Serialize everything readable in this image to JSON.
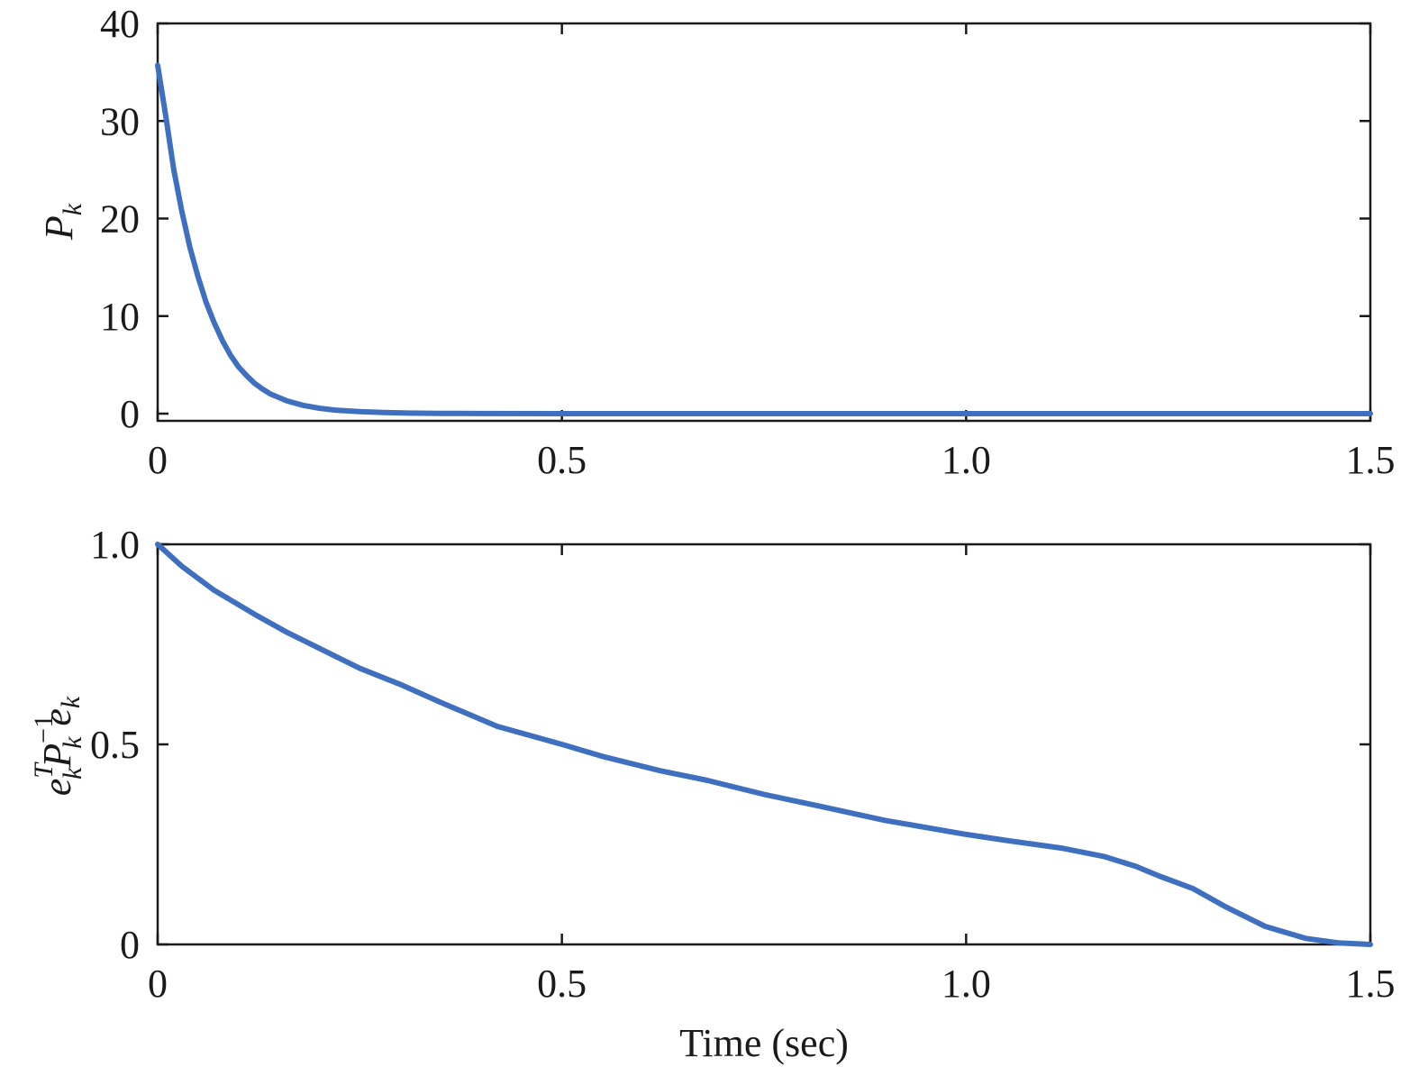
{
  "chart_data": [
    {
      "type": "line",
      "title": "",
      "xlabel": "",
      "ylabel": "P_k",
      "ylabel_parts": {
        "base": "P",
        "sub": "k"
      },
      "xlim": [
        0,
        1.5
      ],
      "ylim": [
        -1,
        40
      ],
      "grid": false,
      "legend": "none",
      "x_ticks": [
        {
          "value": 0,
          "label": "0"
        },
        {
          "value": 0.5,
          "label": "0.5"
        },
        {
          "value": 1.0,
          "label": "1.0"
        },
        {
          "value": 1.5,
          "label": "1.5"
        }
      ],
      "y_ticks": [
        {
          "value": 0,
          "label": "0"
        },
        {
          "value": 10,
          "label": "10"
        },
        {
          "value": 20,
          "label": "20"
        },
        {
          "value": 30,
          "label": "30"
        },
        {
          "value": 40,
          "label": "40"
        }
      ],
      "series": [
        {
          "color": "#3f6fbf",
          "x": [
            0,
            0.01,
            0.02,
            0.03,
            0.04,
            0.05,
            0.06,
            0.07,
            0.08,
            0.09,
            0.1,
            0.11,
            0.12,
            0.13,
            0.14,
            0.16,
            0.18,
            0.2,
            0.22,
            0.25,
            0.28,
            0.31,
            0.35,
            0.4,
            0.5,
            0.7,
            1.0,
            1.2,
            1.5
          ],
          "y": [
            35.7,
            30.5,
            25.0,
            20.7,
            17.0,
            14.0,
            11.4,
            9.3,
            7.5,
            6.0,
            4.8,
            3.9,
            3.1,
            2.5,
            2.0,
            1.3,
            0.85,
            0.55,
            0.36,
            0.2,
            0.11,
            0.06,
            0.03,
            0.01,
            0,
            0,
            0,
            0,
            0
          ]
        }
      ]
    },
    {
      "type": "line",
      "title": "",
      "xlabel": "Time (sec)",
      "ylabel": "e_k^T P_k^-1 e_k",
      "ylabel_parts": {
        "e": "e",
        "k": "k",
        "T": "T",
        "P": "P",
        "inv": "−1"
      },
      "xlim": [
        0,
        1.5
      ],
      "ylim": [
        0,
        1.0
      ],
      "grid": false,
      "legend": "none",
      "x_ticks": [
        {
          "value": 0,
          "label": "0"
        },
        {
          "value": 0.5,
          "label": "0.5"
        },
        {
          "value": 1.0,
          "label": "1.0"
        },
        {
          "value": 1.5,
          "label": "1.5"
        }
      ],
      "y_ticks": [
        {
          "value": 0,
          "label": "0"
        },
        {
          "value": 0.5,
          "label": "0.5"
        },
        {
          "value": 1.0,
          "label": "1.0"
        }
      ],
      "series": [
        {
          "color": "#3f6fbf",
          "x": [
            0,
            0.03,
            0.07,
            0.12,
            0.16,
            0.22,
            0.25,
            0.3,
            0.35,
            0.42,
            0.5,
            0.55,
            0.62,
            0.68,
            0.75,
            0.82,
            0.9,
            1.0,
            1.05,
            1.12,
            1.17,
            1.21,
            1.24,
            1.28,
            1.32,
            1.37,
            1.42,
            1.46,
            1.5
          ],
          "y": [
            1.0,
            0.945,
            0.885,
            0.825,
            0.78,
            0.72,
            0.69,
            0.65,
            0.605,
            0.545,
            0.5,
            0.47,
            0.435,
            0.41,
            0.375,
            0.345,
            0.31,
            0.275,
            0.26,
            0.24,
            0.22,
            0.195,
            0.17,
            0.14,
            0.095,
            0.045,
            0.015,
            0.004,
            0.0
          ]
        }
      ]
    }
  ]
}
